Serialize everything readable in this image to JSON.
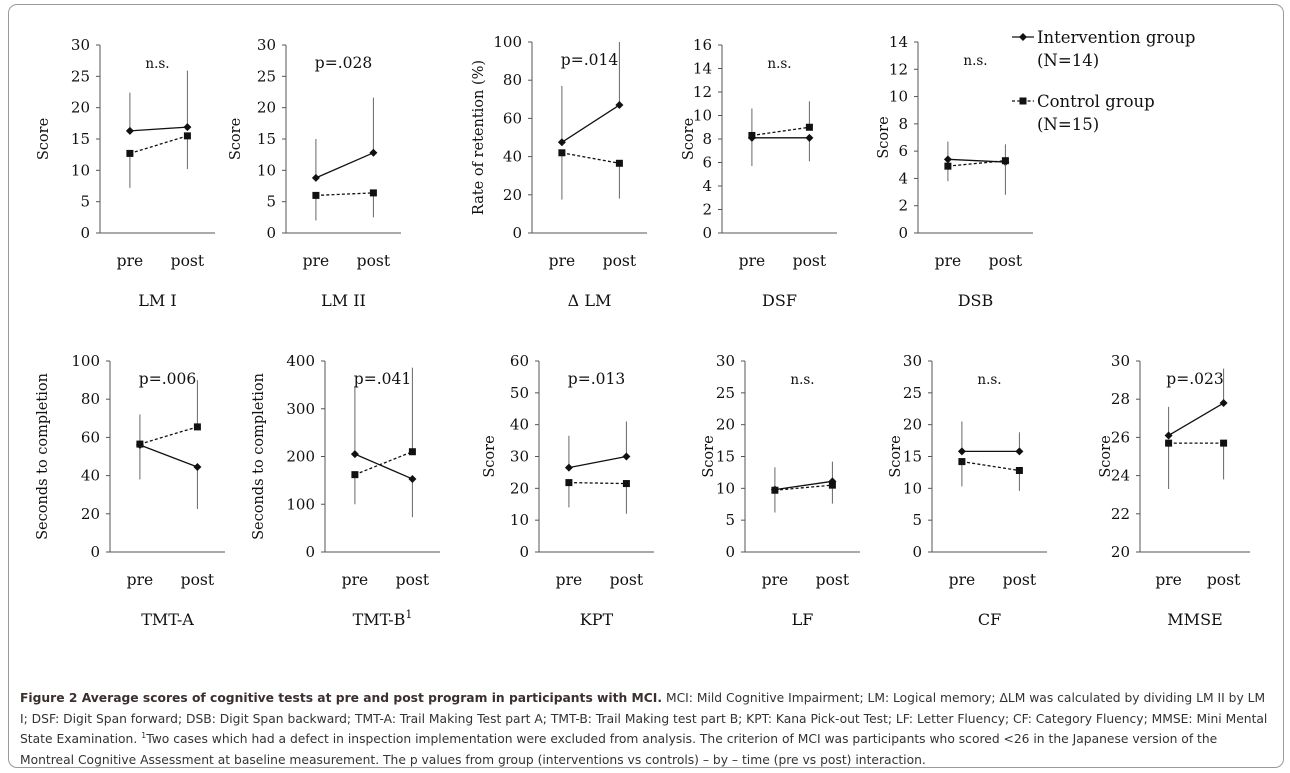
{
  "legend": {
    "intervention": "Intervention group",
    "intervention_n": "(N=14)",
    "control": "Control group",
    "control_n": "(N=15)",
    "placement": "top-right"
  },
  "colors": {
    "line": "#111111",
    "caption_title": "#3b2f2f",
    "caption_text": "#333333",
    "frame": "#9a9a9a"
  },
  "caption": {
    "title": "Figure 2 Average scores of cognitive tests at pre and post program in participants with MCI.",
    "body_part1": " MCI: Mild Cognitive Impairment; LM: Logical memory; ΔLM was calculated by dividing LM II by LM I; DSF: Digit Span forward; DSB: Digit Span backward; TMT-A: Trail Making Test part A; TMT-B: Trail Making test part B; KPT: Kana Pick-out Test; LF: Letter Fluency; CF: Category Fluency; MMSE: Mini Mental State Examination. ",
    "footnote_mark": "1",
    "body_part2": "Two cases which had a defect in inspection implementation were excluded from analysis. The criterion of MCI was participants who scored <26 in the Japanese version of the Montreal Cognitive Assessment at baseline measurement. The p values from group (interventions vs controls) – by – time (pre vs post) interaction."
  },
  "chart_data": [
    {
      "type": "line",
      "title": "LM I",
      "ylabel": "Score",
      "categories": [
        "pre",
        "post"
      ],
      "ylim": [
        0,
        30
      ],
      "yticks": [
        0,
        5,
        10,
        15,
        20,
        25,
        30
      ],
      "annotation": "n.s.",
      "series": [
        {
          "name": "Intervention group",
          "values": [
            16.3,
            16.9
          ],
          "err_upper": [
            22.4,
            25.9
          ]
        },
        {
          "name": "Control group",
          "values": [
            12.7,
            15.5
          ],
          "err_lower": [
            7.2,
            10.2
          ]
        }
      ]
    },
    {
      "type": "line",
      "title": "LM II",
      "ylabel": "Score",
      "categories": [
        "pre",
        "post"
      ],
      "ylim": [
        0,
        30
      ],
      "yticks": [
        0,
        5,
        10,
        15,
        20,
        25,
        30
      ],
      "annotation": "p=.028",
      "series": [
        {
          "name": "Intervention group",
          "values": [
            8.8,
            12.8
          ],
          "err_upper": [
            15,
            21.6
          ]
        },
        {
          "name": "Control group",
          "values": [
            6,
            6.4
          ],
          "err_lower": [
            2,
            2.5
          ]
        }
      ]
    },
    {
      "type": "line",
      "title": "Δ LM",
      "ylabel": "Rate of retention (%)",
      "categories": [
        "pre",
        "post"
      ],
      "ylim": [
        0,
        100
      ],
      "yticks": [
        0,
        20,
        40,
        60,
        80,
        100
      ],
      "annotation": "p=.014",
      "series": [
        {
          "name": "Intervention group",
          "values": [
            47.5,
            67
          ],
          "err_upper": [
            77,
            100
          ]
        },
        {
          "name": "Control group",
          "values": [
            42,
            36.5
          ],
          "err_lower": [
            17.5,
            18
          ]
        }
      ]
    },
    {
      "type": "line",
      "title": "DSF",
      "ylabel": "Score",
      "categories": [
        "pre",
        "post"
      ],
      "ylim": [
        0,
        16
      ],
      "yticks": [
        0,
        2,
        4,
        6,
        8,
        10,
        12,
        14,
        16
      ],
      "annotation": "n.s.",
      "series": [
        {
          "name": "Intervention group",
          "values": [
            8.1,
            8.1
          ],
          "err_lower": [
            5.7,
            6.1
          ]
        },
        {
          "name": "Control group",
          "values": [
            8.3,
            9
          ],
          "err_upper": [
            10.6,
            11.2
          ]
        }
      ]
    },
    {
      "type": "line",
      "title": "DSB",
      "ylabel": "Score",
      "categories": [
        "pre",
        "post"
      ],
      "ylim": [
        0,
        14
      ],
      "yticks": [
        0,
        2,
        4,
        6,
        8,
        10,
        12,
        14
      ],
      "annotation": "n.s.",
      "series": [
        {
          "name": "Intervention group",
          "values": [
            5.4,
            5.2
          ],
          "err_upper": [
            6.7,
            6.5
          ]
        },
        {
          "name": "Control group",
          "values": [
            4.9,
            5.3
          ],
          "err_lower": [
            3.8,
            2.8
          ]
        }
      ]
    },
    {
      "type": "line",
      "title": "TMT-A",
      "ylabel": "Seconds to completion",
      "categories": [
        "pre",
        "post"
      ],
      "ylim": [
        0,
        100
      ],
      "yticks": [
        0,
        20,
        40,
        60,
        80,
        100
      ],
      "annotation": "p=.006",
      "series": [
        {
          "name": "Intervention group",
          "values": [
            56,
            44.5
          ],
          "err_lower": [
            38,
            22.5
          ]
        },
        {
          "name": "Control group",
          "values": [
            56.5,
            65.5
          ],
          "err_upper": [
            72,
            90
          ]
        }
      ]
    },
    {
      "type": "line",
      "title": "TMT-B",
      "title_sup": "1",
      "ylabel": "Seconds to completion",
      "categories": [
        "pre",
        "post"
      ],
      "ylim": [
        0,
        400
      ],
      "yticks": [
        0,
        100,
        200,
        300,
        400
      ],
      "annotation": "p=.041",
      "series": [
        {
          "name": "Intervention group",
          "values": [
            205,
            153
          ],
          "err_upper": [
            348
          ],
          "err_lower": [
            null,
            73
          ]
        },
        {
          "name": "Control group",
          "values": [
            162,
            210
          ],
          "err_lower": [
            100
          ],
          "err_upper": [
            null,
            386
          ]
        }
      ]
    },
    {
      "type": "line",
      "title": "KPT",
      "ylabel": "Score",
      "categories": [
        "pre",
        "post"
      ],
      "ylim": [
        0,
        60
      ],
      "yticks": [
        0,
        10,
        20,
        30,
        40,
        50,
        60
      ],
      "annotation": "p=.013",
      "series": [
        {
          "name": "Intervention group",
          "values": [
            26.5,
            30
          ],
          "err_upper": [
            36.5,
            41
          ]
        },
        {
          "name": "Control group",
          "values": [
            21.8,
            21.5
          ],
          "err_lower": [
            14,
            12
          ]
        }
      ]
    },
    {
      "type": "line",
      "title": "LF",
      "ylabel": "Score",
      "categories": [
        "pre",
        "post"
      ],
      "ylim": [
        0,
        30
      ],
      "yticks": [
        0,
        5,
        10,
        15,
        20,
        25,
        30
      ],
      "annotation": "n.s.",
      "series": [
        {
          "name": "Intervention group",
          "values": [
            9.8,
            11.1
          ],
          "err_upper": [
            13.3,
            14.2
          ]
        },
        {
          "name": "Control group",
          "values": [
            9.7,
            10.5
          ],
          "err_lower": [
            6.2,
            7.6
          ]
        }
      ]
    },
    {
      "type": "line",
      "title": "CF",
      "ylabel": "Score",
      "categories": [
        "pre",
        "post"
      ],
      "ylim": [
        0,
        30
      ],
      "yticks": [
        0,
        5,
        10,
        15,
        20,
        25,
        30
      ],
      "annotation": "n.s.",
      "series": [
        {
          "name": "Intervention group",
          "values": [
            15.8,
            15.8
          ],
          "err_upper": [
            20.5,
            18.8
          ]
        },
        {
          "name": "Control group",
          "values": [
            14.2,
            12.8
          ],
          "err_lower": [
            10.3,
            9.6
          ]
        }
      ]
    },
    {
      "type": "line",
      "title": "MMSE",
      "ylabel": "Score",
      "categories": [
        "pre",
        "post"
      ],
      "ylim": [
        20,
        30
      ],
      "yticks": [
        20,
        22,
        24,
        26,
        28,
        30
      ],
      "annotation": "p=.023",
      "series": [
        {
          "name": "Intervention group",
          "values": [
            26.1,
            27.8
          ],
          "err_upper": [
            27.6,
            29.6
          ]
        },
        {
          "name": "Control group",
          "values": [
            25.7,
            25.7
          ],
          "err_lower": [
            23.3,
            23.8
          ]
        }
      ]
    }
  ]
}
